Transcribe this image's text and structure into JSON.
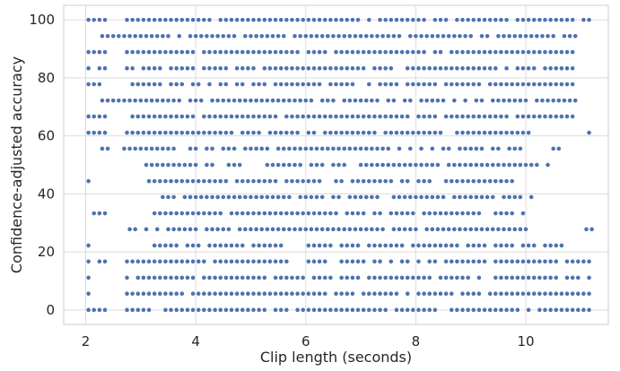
{
  "chart_data": {
    "type": "scatter",
    "xlabel": "Clip length (seconds)",
    "ylabel": "Confidence-adjusted accuracy",
    "xlim": [
      1.6,
      11.5
    ],
    "ylim": [
      -5,
      105
    ],
    "x_ticks": [
      2,
      4,
      6,
      8,
      10
    ],
    "y_ticks": [
      0,
      20,
      40,
      60,
      80,
      100
    ],
    "grid": true,
    "legend": "none",
    "marker_color": "#4c72b0",
    "y_levels": [
      0,
      5.6,
      11.1,
      16.7,
      22.2,
      27.8,
      33.3,
      38.9,
      44.4,
      50,
      55.6,
      61.1,
      66.7,
      72.2,
      77.8,
      83.3,
      88.9,
      94.4,
      100
    ],
    "rows": [
      {
        "y": 100,
        "x_start": 2.05,
        "x_end": 11.2,
        "step": 0.1,
        "gaps": [
          [
            2.4,
            2.7
          ]
        ]
      },
      {
        "y": 94.4,
        "x_start": 2.3,
        "x_end": 10.9,
        "step": 0.1,
        "gaps": []
      },
      {
        "y": 88.9,
        "x_start": 2.05,
        "x_end": 10.9,
        "step": 0.1,
        "gaps": [
          [
            2.4,
            2.7
          ]
        ]
      },
      {
        "y": 83.3,
        "x_start": 2.05,
        "x_end": 10.9,
        "step": 0.1,
        "gaps": [
          [
            2.4,
            2.7
          ]
        ]
      },
      {
        "y": 77.8,
        "x_start": 2.05,
        "x_end": 10.9,
        "step": 0.1,
        "gaps": [
          [
            2.4,
            2.7
          ]
        ]
      },
      {
        "y": 72.2,
        "x_start": 2.3,
        "x_end": 10.9,
        "step": 0.1,
        "gaps": []
      },
      {
        "y": 66.7,
        "x_start": 2.05,
        "x_end": 10.9,
        "step": 0.1,
        "gaps": [
          [
            2.4,
            2.7
          ]
        ]
      },
      {
        "y": 61.1,
        "x_start": 2.05,
        "x_end": 11.2,
        "step": 0.1,
        "gaps": [
          [
            2.4,
            2.7
          ],
          [
            10.2,
            11.1
          ]
        ]
      },
      {
        "y": 55.6,
        "x_start": 2.3,
        "x_end": 10.6,
        "step": 0.1,
        "gaps": [
          [
            2.4,
            2.7
          ],
          [
            9.9,
            10.5
          ]
        ]
      },
      {
        "y": 50,
        "x_start": 3.0,
        "x_end": 10.4,
        "step": 0.1,
        "gaps": []
      },
      {
        "y": 44.4,
        "x_start": 2.05,
        "x_end": 9.8,
        "step": 0.1,
        "gaps": [
          [
            2.1,
            3.1
          ]
        ]
      },
      {
        "y": 38.9,
        "x_start": 3.3,
        "x_end": 10.1,
        "step": 0.1,
        "gaps": []
      },
      {
        "y": 33.3,
        "x_start": 2.05,
        "x_end": 10.0,
        "step": 0.1,
        "gaps": [
          [
            2.4,
            3.2
          ]
        ]
      },
      {
        "y": 27.8,
        "x_start": 2.8,
        "x_end": 11.2,
        "step": 0.1,
        "gaps": [
          [
            10.1,
            11.1
          ]
        ]
      },
      {
        "y": 22.2,
        "x_start": 2.05,
        "x_end": 10.7,
        "step": 0.1,
        "gaps": [
          [
            2.1,
            3.2
          ]
        ]
      },
      {
        "y": 16.7,
        "x_start": 2.05,
        "x_end": 11.2,
        "step": 0.1,
        "gaps": [
          [
            2.4,
            2.7
          ]
        ]
      },
      {
        "y": 11.1,
        "x_start": 2.05,
        "x_end": 11.2,
        "step": 0.1,
        "gaps": [
          [
            2.1,
            2.7
          ]
        ]
      },
      {
        "y": 5.6,
        "x_start": 2.05,
        "x_end": 11.2,
        "step": 0.1,
        "gaps": [
          [
            2.1,
            2.7
          ]
        ]
      },
      {
        "y": 0,
        "x_start": 2.05,
        "x_end": 11.2,
        "step": 0.1,
        "gaps": [
          [
            2.4,
            2.7
          ]
        ]
      }
    ]
  }
}
